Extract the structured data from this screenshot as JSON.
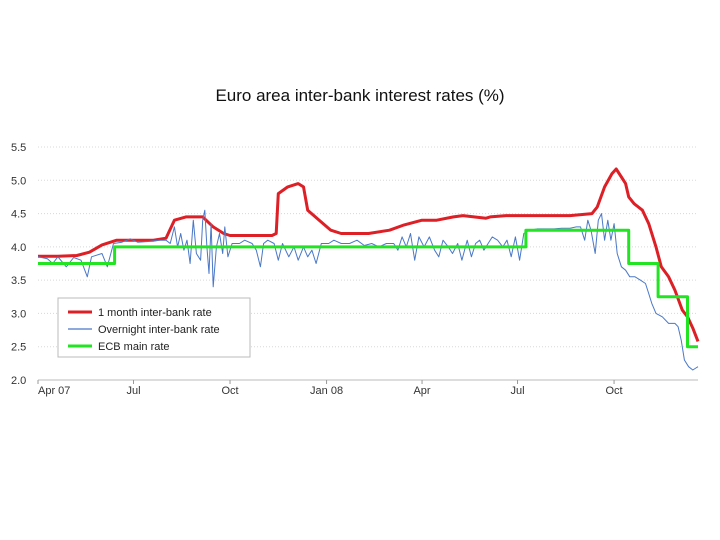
{
  "chart_data": {
    "type": "line",
    "title": "Euro area inter-bank interest rates (%)",
    "xlabel": "",
    "ylabel": "",
    "ylim": [
      2.0,
      5.5
    ],
    "xlim": [
      "2007-04-01",
      "2008-12-20"
    ],
    "yticks": [
      "2.0",
      "2.5",
      "3.0",
      "3.5",
      "4.0",
      "4.5",
      "5.0",
      "5.5"
    ],
    "xticks": [
      {
        "label": "Apr 07",
        "date": "2007-04-01"
      },
      {
        "label": "Jul",
        "date": "2007-07-01"
      },
      {
        "label": "Oct",
        "date": "2007-10-01"
      },
      {
        "label": "Jan 08",
        "date": "2008-01-01"
      },
      {
        "label": "Apr",
        "date": "2008-04-01"
      },
      {
        "label": "Jul",
        "date": "2008-07-01"
      },
      {
        "label": "Oct",
        "date": "2008-10-01"
      }
    ],
    "grid": true,
    "legend_position": "bottom-left",
    "series": [
      {
        "name": "1 month inter-bank rate",
        "color": "#dd1f26",
        "style": "thick",
        "points": [
          [
            "2007-04-01",
            3.86
          ],
          [
            "2007-04-20",
            3.86
          ],
          [
            "2007-05-08",
            3.87
          ],
          [
            "2007-05-20",
            3.92
          ],
          [
            "2007-06-01",
            4.03
          ],
          [
            "2007-06-15",
            4.1
          ],
          [
            "2007-07-01",
            4.1
          ],
          [
            "2007-07-20",
            4.1
          ],
          [
            "2007-08-01",
            4.13
          ],
          [
            "2007-08-09",
            4.4
          ],
          [
            "2007-08-20",
            4.45
          ],
          [
            "2007-09-05",
            4.45
          ],
          [
            "2007-09-15",
            4.3
          ],
          [
            "2007-09-25",
            4.2
          ],
          [
            "2007-10-01",
            4.17
          ],
          [
            "2007-10-20",
            4.17
          ],
          [
            "2007-11-10",
            4.17
          ],
          [
            "2007-11-14",
            4.2
          ],
          [
            "2007-11-16",
            4.8
          ],
          [
            "2007-11-25",
            4.9
          ],
          [
            "2007-12-05",
            4.95
          ],
          [
            "2007-12-10",
            4.9
          ],
          [
            "2007-12-14",
            4.55
          ],
          [
            "2007-12-25",
            4.4
          ],
          [
            "2008-01-05",
            4.25
          ],
          [
            "2008-01-15",
            4.2
          ],
          [
            "2008-02-10",
            4.2
          ],
          [
            "2008-03-01",
            4.25
          ],
          [
            "2008-03-15",
            4.33
          ],
          [
            "2008-04-01",
            4.4
          ],
          [
            "2008-04-15",
            4.4
          ],
          [
            "2008-05-01",
            4.45
          ],
          [
            "2008-05-10",
            4.47
          ],
          [
            "2008-06-01",
            4.43
          ],
          [
            "2008-06-05",
            4.45
          ],
          [
            "2008-06-20",
            4.47
          ],
          [
            "2008-07-10",
            4.47
          ],
          [
            "2008-08-01",
            4.47
          ],
          [
            "2008-08-20",
            4.47
          ],
          [
            "2008-09-10",
            4.5
          ],
          [
            "2008-09-15",
            4.6
          ],
          [
            "2008-09-22",
            4.9
          ],
          [
            "2008-09-29",
            5.1
          ],
          [
            "2008-10-03",
            5.17
          ],
          [
            "2008-10-08",
            5.05
          ],
          [
            "2008-10-12",
            4.95
          ],
          [
            "2008-10-15",
            4.75
          ],
          [
            "2008-10-20",
            4.65
          ],
          [
            "2008-10-28",
            4.55
          ],
          [
            "2008-11-03",
            4.35
          ],
          [
            "2008-11-10",
            4.0
          ],
          [
            "2008-11-15",
            3.7
          ],
          [
            "2008-11-22",
            3.55
          ],
          [
            "2008-11-28",
            3.35
          ],
          [
            "2008-12-05",
            3.05
          ],
          [
            "2008-12-10",
            2.95
          ],
          [
            "2008-12-15",
            2.78
          ],
          [
            "2008-12-20",
            2.58
          ]
        ]
      },
      {
        "name": "Overnight inter-bank rate",
        "color": "#4a78c8",
        "style": "thin",
        "points": [
          [
            "2007-04-01",
            3.85
          ],
          [
            "2007-04-10",
            3.82
          ],
          [
            "2007-04-15",
            3.75
          ],
          [
            "2007-04-20",
            3.85
          ],
          [
            "2007-04-28",
            3.7
          ],
          [
            "2007-05-05",
            3.84
          ],
          [
            "2007-05-12",
            3.8
          ],
          [
            "2007-05-18",
            3.55
          ],
          [
            "2007-05-22",
            3.85
          ],
          [
            "2007-06-01",
            3.9
          ],
          [
            "2007-06-06",
            3.7
          ],
          [
            "2007-06-12",
            4.05
          ],
          [
            "2007-06-20",
            4.07
          ],
          [
            "2007-06-28",
            4.12
          ],
          [
            "2007-07-05",
            4.07
          ],
          [
            "2007-07-15",
            4.08
          ],
          [
            "2007-07-25",
            4.1
          ],
          [
            "2007-08-01",
            4.1
          ],
          [
            "2007-08-05",
            4.05
          ],
          [
            "2007-08-09",
            4.3
          ],
          [
            "2007-08-12",
            4.0
          ],
          [
            "2007-08-15",
            4.2
          ],
          [
            "2007-08-18",
            3.95
          ],
          [
            "2007-08-21",
            4.1
          ],
          [
            "2007-08-24",
            3.75
          ],
          [
            "2007-08-27",
            4.4
          ],
          [
            "2007-08-30",
            3.9
          ],
          [
            "2007-09-03",
            3.8
          ],
          [
            "2007-09-05",
            4.4
          ],
          [
            "2007-09-07",
            4.55
          ],
          [
            "2007-09-09",
            4.0
          ],
          [
            "2007-09-11",
            3.6
          ],
          [
            "2007-09-13",
            4.35
          ],
          [
            "2007-09-15",
            3.4
          ],
          [
            "2007-09-18",
            4.0
          ],
          [
            "2007-09-21",
            4.2
          ],
          [
            "2007-09-24",
            3.9
          ],
          [
            "2007-09-26",
            4.3
          ],
          [
            "2007-09-29",
            3.85
          ],
          [
            "2007-10-03",
            4.05
          ],
          [
            "2007-10-10",
            4.05
          ],
          [
            "2007-10-15",
            4.1
          ],
          [
            "2007-10-22",
            4.05
          ],
          [
            "2007-10-26",
            3.95
          ],
          [
            "2007-10-30",
            3.7
          ],
          [
            "2007-11-02",
            4.05
          ],
          [
            "2007-11-06",
            4.1
          ],
          [
            "2007-11-12",
            4.05
          ],
          [
            "2007-11-16",
            3.8
          ],
          [
            "2007-11-20",
            4.05
          ],
          [
            "2007-11-26",
            3.85
          ],
          [
            "2007-12-01",
            4.0
          ],
          [
            "2007-12-05",
            3.8
          ],
          [
            "2007-12-10",
            4.0
          ],
          [
            "2007-12-14",
            3.85
          ],
          [
            "2007-12-18",
            3.95
          ],
          [
            "2007-12-22",
            3.75
          ],
          [
            "2007-12-27",
            4.05
          ],
          [
            "2008-01-03",
            4.05
          ],
          [
            "2008-01-08",
            4.1
          ],
          [
            "2008-01-15",
            4.05
          ],
          [
            "2008-01-23",
            4.05
          ],
          [
            "2008-01-30",
            4.1
          ],
          [
            "2008-02-06",
            4.02
          ],
          [
            "2008-02-13",
            4.05
          ],
          [
            "2008-02-20",
            4.0
          ],
          [
            "2008-02-27",
            4.05
          ],
          [
            "2008-03-05",
            4.05
          ],
          [
            "2008-03-09",
            3.95
          ],
          [
            "2008-03-13",
            4.15
          ],
          [
            "2008-03-17",
            4.0
          ],
          [
            "2008-03-21",
            4.2
          ],
          [
            "2008-03-25",
            3.8
          ],
          [
            "2008-03-29",
            4.15
          ],
          [
            "2008-04-03",
            4.0
          ],
          [
            "2008-04-08",
            4.15
          ],
          [
            "2008-04-13",
            3.95
          ],
          [
            "2008-04-17",
            3.85
          ],
          [
            "2008-04-21",
            4.1
          ],
          [
            "2008-04-26",
            4.0
          ],
          [
            "2008-04-30",
            3.9
          ],
          [
            "2008-05-05",
            4.05
          ],
          [
            "2008-05-09",
            3.8
          ],
          [
            "2008-05-14",
            4.1
          ],
          [
            "2008-05-18",
            3.85
          ],
          [
            "2008-05-22",
            4.05
          ],
          [
            "2008-05-26",
            4.1
          ],
          [
            "2008-05-30",
            3.95
          ],
          [
            "2008-06-03",
            4.05
          ],
          [
            "2008-06-07",
            4.15
          ],
          [
            "2008-06-12",
            4.1
          ],
          [
            "2008-06-17",
            4.0
          ],
          [
            "2008-06-21",
            4.1
          ],
          [
            "2008-06-25",
            3.85
          ],
          [
            "2008-06-29",
            4.15
          ],
          [
            "2008-07-03",
            3.8
          ],
          [
            "2008-07-07",
            4.2
          ],
          [
            "2008-07-12",
            4.25
          ],
          [
            "2008-07-20",
            4.27
          ],
          [
            "2008-07-28",
            4.27
          ],
          [
            "2008-08-05",
            4.27
          ],
          [
            "2008-08-12",
            4.28
          ],
          [
            "2008-08-20",
            4.28
          ],
          [
            "2008-08-26",
            4.3
          ],
          [
            "2008-08-30",
            4.3
          ],
          [
            "2008-09-03",
            4.1
          ],
          [
            "2008-09-06",
            4.4
          ],
          [
            "2008-09-09",
            4.25
          ],
          [
            "2008-09-13",
            3.9
          ],
          [
            "2008-09-16",
            4.4
          ],
          [
            "2008-09-19",
            4.5
          ],
          [
            "2008-09-22",
            4.1
          ],
          [
            "2008-09-25",
            4.4
          ],
          [
            "2008-09-28",
            4.1
          ],
          [
            "2008-10-01",
            4.35
          ],
          [
            "2008-10-04",
            3.9
          ],
          [
            "2008-10-08",
            3.7
          ],
          [
            "2008-10-12",
            3.65
          ],
          [
            "2008-10-16",
            3.55
          ],
          [
            "2008-10-21",
            3.55
          ],
          [
            "2008-10-26",
            3.5
          ],
          [
            "2008-10-31",
            3.45
          ],
          [
            "2008-11-03",
            3.3
          ],
          [
            "2008-11-06",
            3.15
          ],
          [
            "2008-11-10",
            3.0
          ],
          [
            "2008-11-16",
            2.95
          ],
          [
            "2008-11-22",
            2.85
          ],
          [
            "2008-11-28",
            2.85
          ],
          [
            "2008-12-01",
            2.8
          ],
          [
            "2008-12-04",
            2.6
          ],
          [
            "2008-12-07",
            2.3
          ],
          [
            "2008-12-11",
            2.2
          ],
          [
            "2008-12-15",
            2.15
          ],
          [
            "2008-12-18",
            2.18
          ],
          [
            "2008-12-20",
            2.2
          ]
        ]
      },
      {
        "name": "ECB main rate",
        "color": "#22e422",
        "style": "thick",
        "points": [
          [
            "2007-04-01",
            3.75
          ],
          [
            "2007-06-13",
            3.75
          ],
          [
            "2007-06-13",
            4.0
          ],
          [
            "2008-07-09",
            4.0
          ],
          [
            "2008-07-09",
            4.25
          ],
          [
            "2008-10-15",
            4.25
          ],
          [
            "2008-10-15",
            3.75
          ],
          [
            "2008-11-12",
            3.75
          ],
          [
            "2008-11-12",
            3.25
          ],
          [
            "2008-12-10",
            3.25
          ],
          [
            "2008-12-10",
            2.5
          ],
          [
            "2008-12-20",
            2.5
          ]
        ]
      }
    ]
  }
}
